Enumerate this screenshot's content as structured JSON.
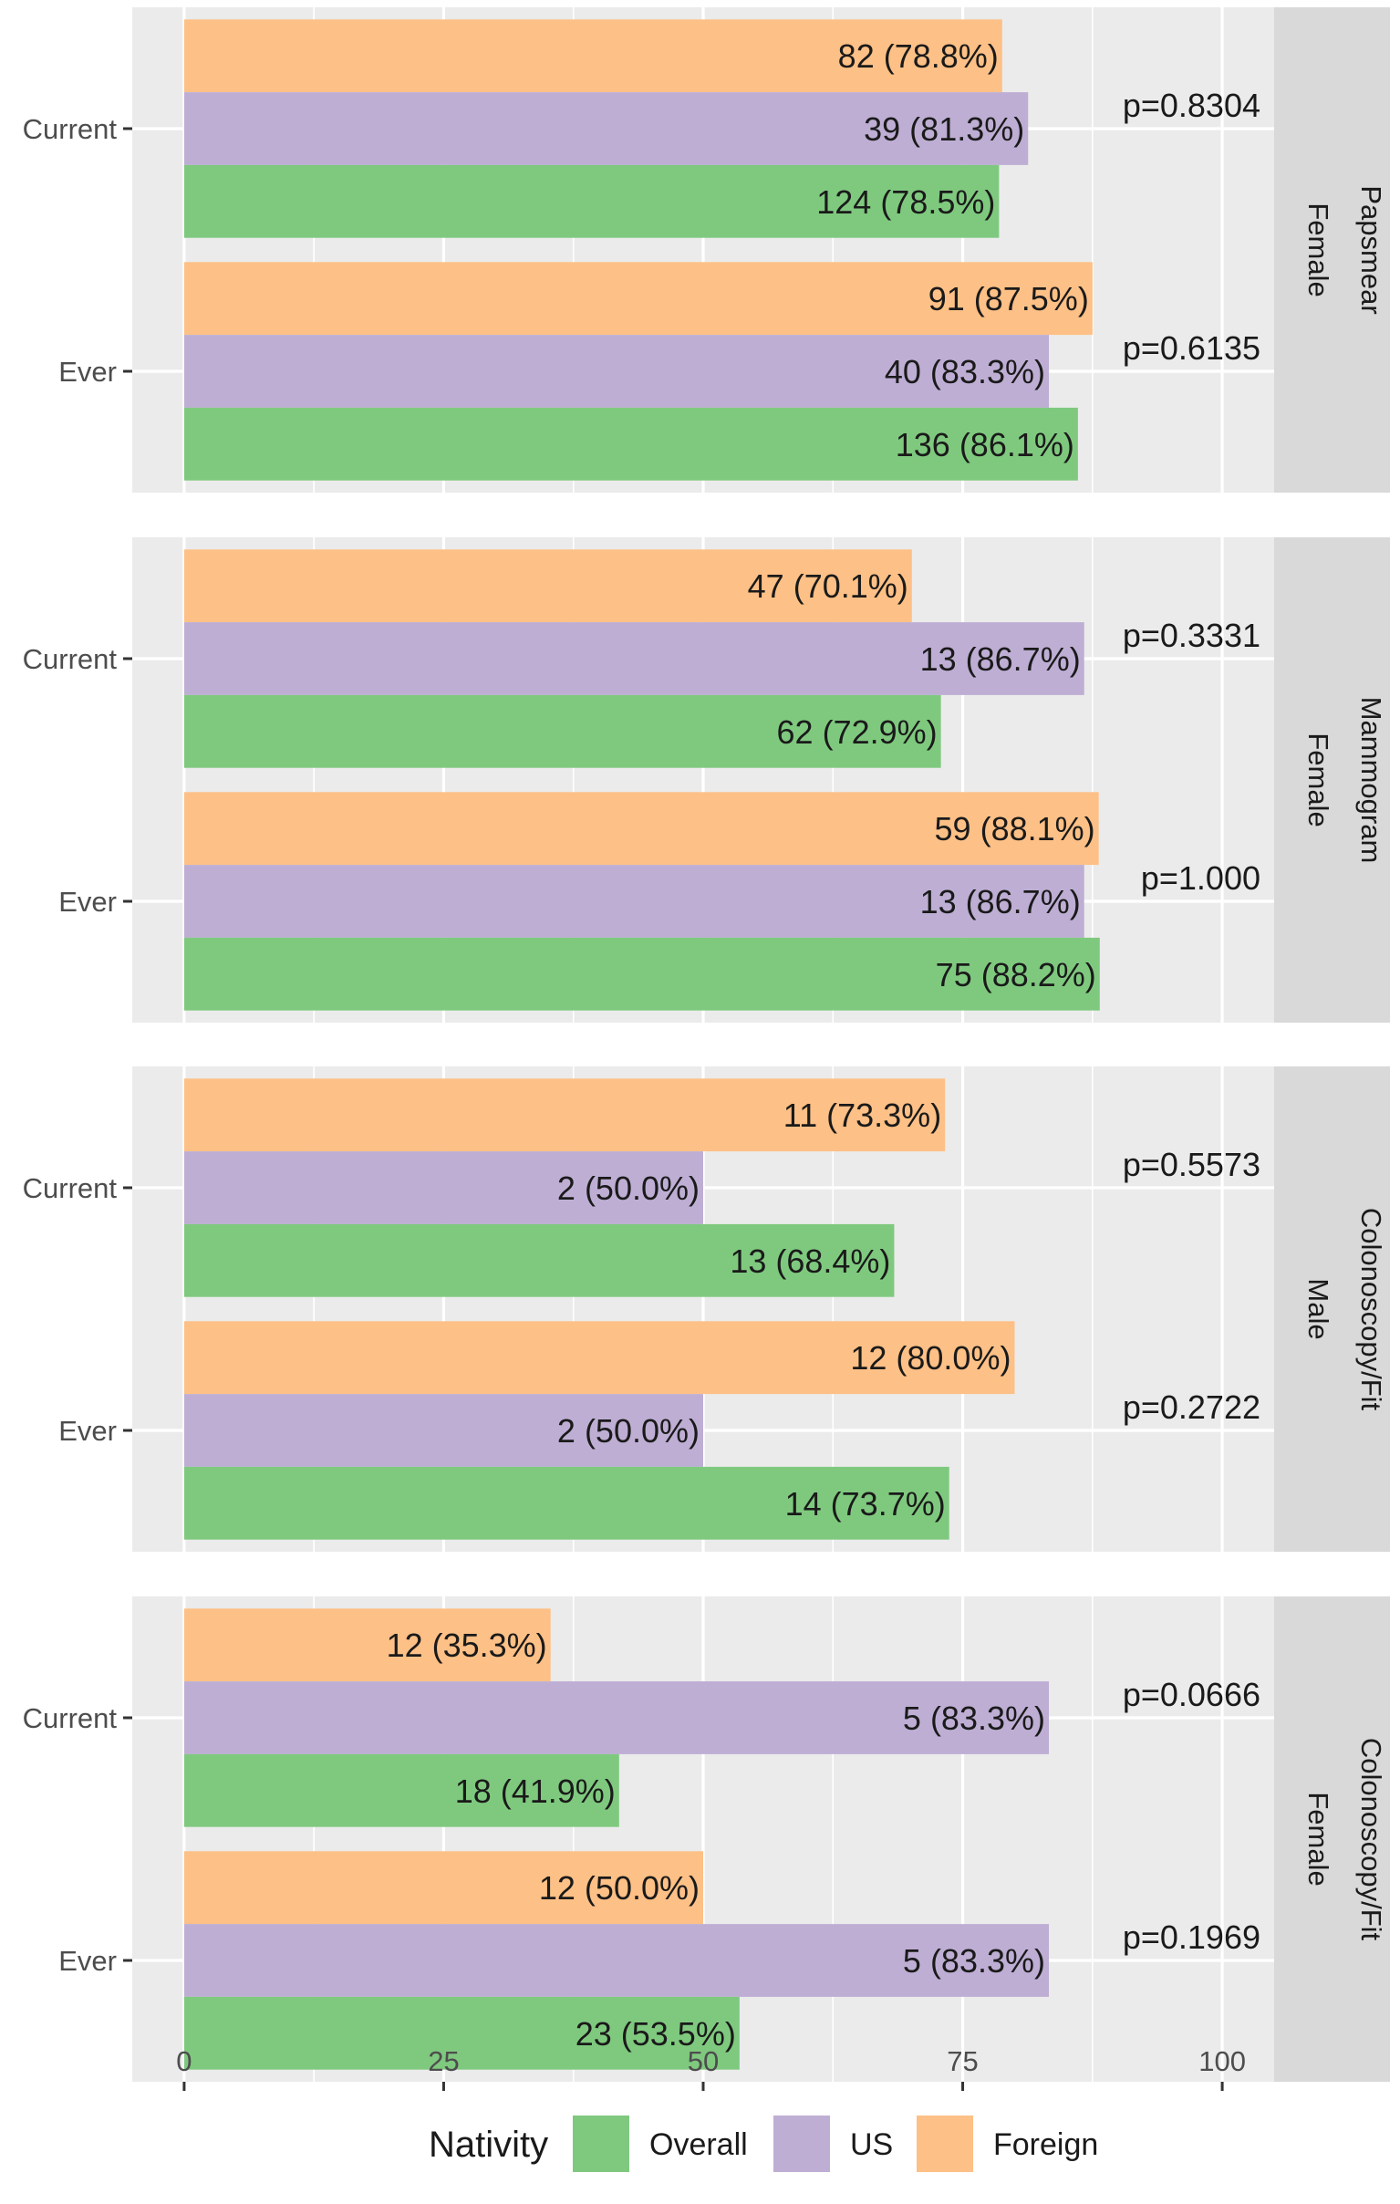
{
  "chart_data": {
    "type": "bar",
    "orientation": "horizontal",
    "xlim": [
      -5,
      105
    ],
    "x_ticks": [
      0,
      25,
      50,
      75,
      100
    ],
    "legend": {
      "title": "Nativity",
      "position": "bottom",
      "items": [
        {
          "name": "Overall",
          "color": "#7FC97F"
        },
        {
          "name": "US",
          "color": "#BEAED4"
        },
        {
          "name": "Foreign",
          "color": "#FDC086"
        }
      ]
    },
    "panels": [
      {
        "strip_outer": "Papsmear",
        "strip_inner": "Female",
        "groups": [
          {
            "label": "Current",
            "p_value": "p=0.8304",
            "bars": [
              {
                "series": "Foreign",
                "value": 78.8,
                "label": "82 (78.8%)"
              },
              {
                "series": "US",
                "value": 81.3,
                "label": "39 (81.3%)"
              },
              {
                "series": "Overall",
                "value": 78.5,
                "label": "124 (78.5%)"
              }
            ]
          },
          {
            "label": "Ever",
            "p_value": "p=0.6135",
            "bars": [
              {
                "series": "Foreign",
                "value": 87.5,
                "label": "91 (87.5%)"
              },
              {
                "series": "US",
                "value": 83.3,
                "label": "40 (83.3%)"
              },
              {
                "series": "Overall",
                "value": 86.1,
                "label": "136 (86.1%)"
              }
            ]
          }
        ]
      },
      {
        "strip_outer": "Mammogram",
        "strip_inner": "Female",
        "groups": [
          {
            "label": "Current",
            "p_value": "p=0.3331",
            "bars": [
              {
                "series": "Foreign",
                "value": 70.1,
                "label": "47 (70.1%)"
              },
              {
                "series": "US",
                "value": 86.7,
                "label": "13 (86.7%)"
              },
              {
                "series": "Overall",
                "value": 72.9,
                "label": "62 (72.9%)"
              }
            ]
          },
          {
            "label": "Ever",
            "p_value": "p=1.000",
            "bars": [
              {
                "series": "Foreign",
                "value": 88.1,
                "label": "59 (88.1%)"
              },
              {
                "series": "US",
                "value": 86.7,
                "label": "13 (86.7%)"
              },
              {
                "series": "Overall",
                "value": 88.2,
                "label": "75 (88.2%)"
              }
            ]
          }
        ]
      },
      {
        "strip_outer": "Colonoscopy/Fit",
        "strip_inner": "Male",
        "groups": [
          {
            "label": "Current",
            "p_value": "p=0.5573",
            "bars": [
              {
                "series": "Foreign",
                "value": 73.3,
                "label": "11 (73.3%)"
              },
              {
                "series": "US",
                "value": 50.0,
                "label": "2 (50.0%)"
              },
              {
                "series": "Overall",
                "value": 68.4,
                "label": "13 (68.4%)"
              }
            ]
          },
          {
            "label": "Ever",
            "p_value": "p=0.2722",
            "bars": [
              {
                "series": "Foreign",
                "value": 80.0,
                "label": "12 (80.0%)"
              },
              {
                "series": "US",
                "value": 50.0,
                "label": "2 (50.0%)"
              },
              {
                "series": "Overall",
                "value": 73.7,
                "label": "14 (73.7%)"
              }
            ]
          }
        ]
      },
      {
        "strip_outer": "Colonoscopy/Fit",
        "strip_inner": "Female",
        "groups": [
          {
            "label": "Current",
            "p_value": "p=0.0666",
            "bars": [
              {
                "series": "Foreign",
                "value": 35.3,
                "label": "12 (35.3%)"
              },
              {
                "series": "US",
                "value": 83.3,
                "label": "5 (83.3%)"
              },
              {
                "series": "Overall",
                "value": 41.9,
                "label": "18 (41.9%)"
              }
            ]
          },
          {
            "label": "Ever",
            "p_value": "p=0.1969",
            "bars": [
              {
                "series": "Foreign",
                "value": 50.0,
                "label": "12 (50.0%)"
              },
              {
                "series": "US",
                "value": 83.3,
                "label": "5 (83.3%)"
              },
              {
                "series": "Overall",
                "value": 53.5,
                "label": "23 (53.5%)"
              }
            ]
          }
        ]
      }
    ]
  }
}
